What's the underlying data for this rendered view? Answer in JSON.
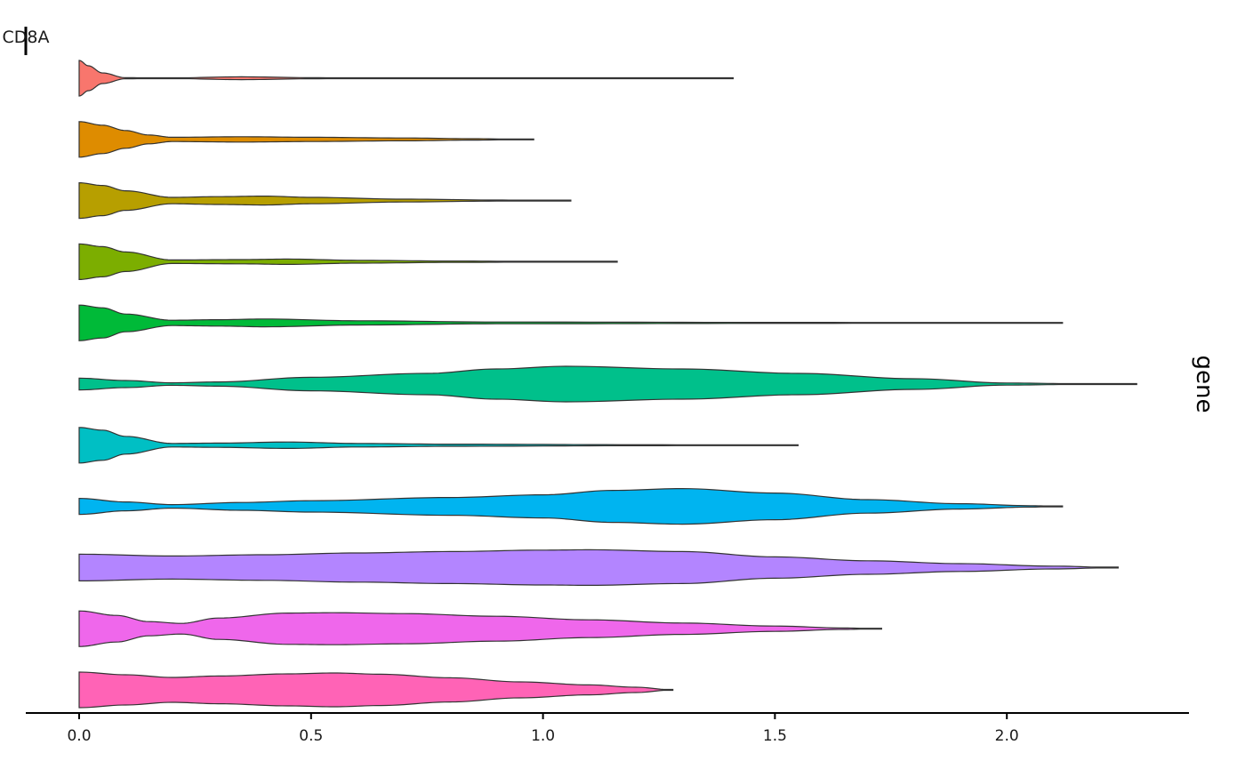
{
  "chart_data": {
    "type": "violin",
    "orientation": "horizontal",
    "facet_label": "CD8A",
    "strip_label": "gene",
    "xlim": [
      -0.11,
      2.4
    ],
    "x_ticks": [
      {
        "value": 0.0,
        "label": "0.0"
      },
      {
        "value": 0.5,
        "label": "0.5"
      },
      {
        "value": 1.0,
        "label": "1.0"
      },
      {
        "value": 1.5,
        "label": "1.5"
      },
      {
        "value": 2.0,
        "label": "2.0"
      }
    ],
    "grid": false,
    "legend": "none",
    "max_half_width": 20,
    "series": [
      {
        "color": "#F8766D",
        "max": 1.41,
        "density": [
          [
            0,
            1
          ],
          [
            0.02,
            0.7
          ],
          [
            0.05,
            0.3
          ],
          [
            0.1,
            0.03
          ],
          [
            0.2,
            0.02
          ],
          [
            0.35,
            0.08
          ],
          [
            0.5,
            0.03
          ],
          [
            0.7,
            0.01
          ],
          [
            1.0,
            0.005
          ],
          [
            1.41,
            0
          ]
        ]
      },
      {
        "color": "#DE8C00",
        "max": 0.98,
        "density": [
          [
            0,
            1
          ],
          [
            0.05,
            0.8
          ],
          [
            0.1,
            0.5
          ],
          [
            0.15,
            0.25
          ],
          [
            0.2,
            0.12
          ],
          [
            0.35,
            0.15
          ],
          [
            0.5,
            0.12
          ],
          [
            0.7,
            0.08
          ],
          [
            0.85,
            0.04
          ],
          [
            0.98,
            0
          ]
        ]
      },
      {
        "color": "#B79F00",
        "max": 1.06,
        "density": [
          [
            0,
            1
          ],
          [
            0.05,
            0.85
          ],
          [
            0.1,
            0.55
          ],
          [
            0.2,
            0.18
          ],
          [
            0.3,
            0.22
          ],
          [
            0.4,
            0.25
          ],
          [
            0.5,
            0.18
          ],
          [
            0.7,
            0.08
          ],
          [
            0.9,
            0.03
          ],
          [
            1.06,
            0
          ]
        ]
      },
      {
        "color": "#7CAE00",
        "max": 1.16,
        "density": [
          [
            0,
            1
          ],
          [
            0.05,
            0.85
          ],
          [
            0.1,
            0.55
          ],
          [
            0.2,
            0.1
          ],
          [
            0.35,
            0.12
          ],
          [
            0.45,
            0.15
          ],
          [
            0.6,
            0.08
          ],
          [
            0.8,
            0.04
          ],
          [
            1.0,
            0.02
          ],
          [
            1.16,
            0
          ]
        ]
      },
      {
        "color": "#00BA38",
        "max": 2.12,
        "density": [
          [
            0,
            1
          ],
          [
            0.05,
            0.85
          ],
          [
            0.1,
            0.5
          ],
          [
            0.2,
            0.15
          ],
          [
            0.3,
            0.18
          ],
          [
            0.4,
            0.22
          ],
          [
            0.6,
            0.12
          ],
          [
            0.9,
            0.05
          ],
          [
            1.5,
            0.03
          ],
          [
            2.0,
            0.01
          ],
          [
            2.12,
            0
          ]
        ]
      },
      {
        "color": "#00C08B",
        "max": 2.28,
        "density": [
          [
            0,
            0.33
          ],
          [
            0.1,
            0.2
          ],
          [
            0.2,
            0.07
          ],
          [
            0.3,
            0.12
          ],
          [
            0.5,
            0.38
          ],
          [
            0.75,
            0.6
          ],
          [
            0.9,
            0.85
          ],
          [
            1.05,
            1.0
          ],
          [
            1.3,
            0.85
          ],
          [
            1.55,
            0.6
          ],
          [
            1.8,
            0.3
          ],
          [
            2.0,
            0.06
          ],
          [
            2.15,
            0.02
          ],
          [
            2.28,
            0
          ]
        ]
      },
      {
        "color": "#00BFC4",
        "max": 1.55,
        "density": [
          [
            0,
            1
          ],
          [
            0.05,
            0.85
          ],
          [
            0.1,
            0.5
          ],
          [
            0.2,
            0.1
          ],
          [
            0.3,
            0.12
          ],
          [
            0.45,
            0.18
          ],
          [
            0.6,
            0.1
          ],
          [
            0.8,
            0.06
          ],
          [
            1.2,
            0.03
          ],
          [
            1.55,
            0
          ]
        ]
      },
      {
        "color": "#00B4F0",
        "max": 2.12,
        "density": [
          [
            0,
            0.45
          ],
          [
            0.1,
            0.25
          ],
          [
            0.2,
            0.1
          ],
          [
            0.35,
            0.22
          ],
          [
            0.5,
            0.32
          ],
          [
            0.8,
            0.5
          ],
          [
            1.0,
            0.65
          ],
          [
            1.15,
            0.9
          ],
          [
            1.3,
            1.0
          ],
          [
            1.5,
            0.75
          ],
          [
            1.7,
            0.38
          ],
          [
            1.9,
            0.15
          ],
          [
            2.05,
            0.04
          ],
          [
            2.12,
            0
          ]
        ]
      },
      {
        "color": "#B385FF",
        "max": 2.24,
        "density": [
          [
            0,
            0.75
          ],
          [
            0.2,
            0.65
          ],
          [
            0.4,
            0.72
          ],
          [
            0.6,
            0.82
          ],
          [
            0.8,
            0.9
          ],
          [
            1.0,
            0.98
          ],
          [
            1.1,
            1.0
          ],
          [
            1.3,
            0.9
          ],
          [
            1.5,
            0.6
          ],
          [
            1.7,
            0.38
          ],
          [
            1.9,
            0.22
          ],
          [
            2.1,
            0.08
          ],
          [
            2.24,
            0
          ]
        ]
      },
      {
        "color": "#EF67EB",
        "max": 1.73,
        "density": [
          [
            0,
            1
          ],
          [
            0.08,
            0.75
          ],
          [
            0.15,
            0.4
          ],
          [
            0.22,
            0.3
          ],
          [
            0.3,
            0.6
          ],
          [
            0.45,
            0.88
          ],
          [
            0.55,
            0.9
          ],
          [
            0.7,
            0.85
          ],
          [
            0.9,
            0.7
          ],
          [
            1.1,
            0.5
          ],
          [
            1.3,
            0.32
          ],
          [
            1.5,
            0.15
          ],
          [
            1.65,
            0.04
          ],
          [
            1.73,
            0
          ]
        ]
      },
      {
        "color": "#FF63B6",
        "max": 1.28,
        "density": [
          [
            0,
            1
          ],
          [
            0.1,
            0.85
          ],
          [
            0.2,
            0.7
          ],
          [
            0.3,
            0.78
          ],
          [
            0.45,
            0.9
          ],
          [
            0.55,
            0.95
          ],
          [
            0.65,
            0.88
          ],
          [
            0.8,
            0.68
          ],
          [
            0.95,
            0.45
          ],
          [
            1.1,
            0.28
          ],
          [
            1.2,
            0.15
          ],
          [
            1.28,
            0
          ]
        ]
      }
    ]
  }
}
